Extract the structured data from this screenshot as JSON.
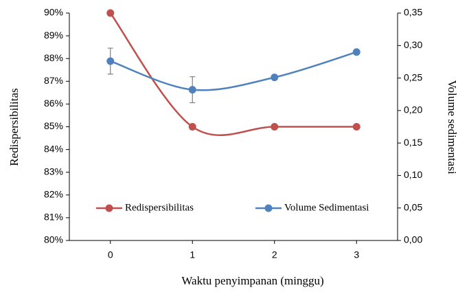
{
  "chart_data": {
    "type": "line",
    "x_label": "Waktu penyimpanan (minggu)",
    "y_label": "Redispersibilitas",
    "y2_label": "Volume sedimentasi",
    "x": [
      0,
      1,
      2,
      3
    ],
    "xlim": [
      -0.5,
      3.5
    ],
    "xticks": [
      0,
      1,
      2,
      3
    ],
    "ylim": [
      80,
      90
    ],
    "yticks": [
      {
        "value": 80,
        "label": "80%"
      },
      {
        "value": 81,
        "label": "81%"
      },
      {
        "value": 82,
        "label": "82%"
      },
      {
        "value": 83,
        "label": "83%"
      },
      {
        "value": 84,
        "label": "84%"
      },
      {
        "value": 85,
        "label": "85%"
      },
      {
        "value": 86,
        "label": "86%"
      },
      {
        "value": 87,
        "label": "87%"
      },
      {
        "value": 88,
        "label": "88%"
      },
      {
        "value": 89,
        "label": "89%"
      },
      {
        "value": 90,
        "label": "90%"
      }
    ],
    "y2lim": [
      0,
      0.35
    ],
    "y2ticks": [
      {
        "value": 0,
        "label": "0,00"
      },
      {
        "value": 0.05,
        "label": "0,05"
      },
      {
        "value": 0.1,
        "label": "0,10"
      },
      {
        "value": 0.15,
        "label": "0,15"
      },
      {
        "value": 0.2,
        "label": "0,20"
      },
      {
        "value": 0.25,
        "label": "0,25"
      },
      {
        "value": 0.3,
        "label": "0,30"
      },
      {
        "value": 0.35,
        "label": "0,35"
      }
    ],
    "smooth": true,
    "series": [
      {
        "name": "Redispersibilitas",
        "color": "#c0504d",
        "values": [
          90,
          85,
          85,
          85
        ]
      },
      {
        "name": "Volume Sedimentasi",
        "color": "#4f81bd",
        "axis": "y2",
        "values": [
          0.276,
          0.232,
          0.251,
          0.29
        ],
        "errors": [
          0.02,
          0.02,
          null,
          null
        ]
      }
    ]
  }
}
